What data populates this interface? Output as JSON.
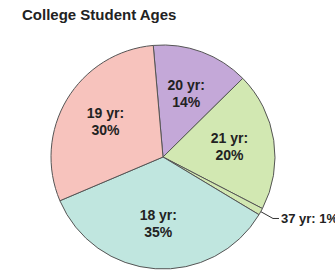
{
  "chart_data": {
    "type": "pie",
    "title": "College Student Ages",
    "categories": [
      "20 yr:",
      "21 yr:",
      "37 yr:",
      "18 yr:",
      "19 yr:"
    ],
    "values": [
      14,
      20,
      1,
      35,
      30
    ],
    "value_labels": [
      "14%",
      "20%",
      "1%",
      "35%",
      "30%"
    ],
    "colors": [
      "#c4a8d8",
      "#d2e8b2",
      "#d2e8b2",
      "#c0e6df",
      "#f7c3bd"
    ],
    "data_labels": true
  }
}
